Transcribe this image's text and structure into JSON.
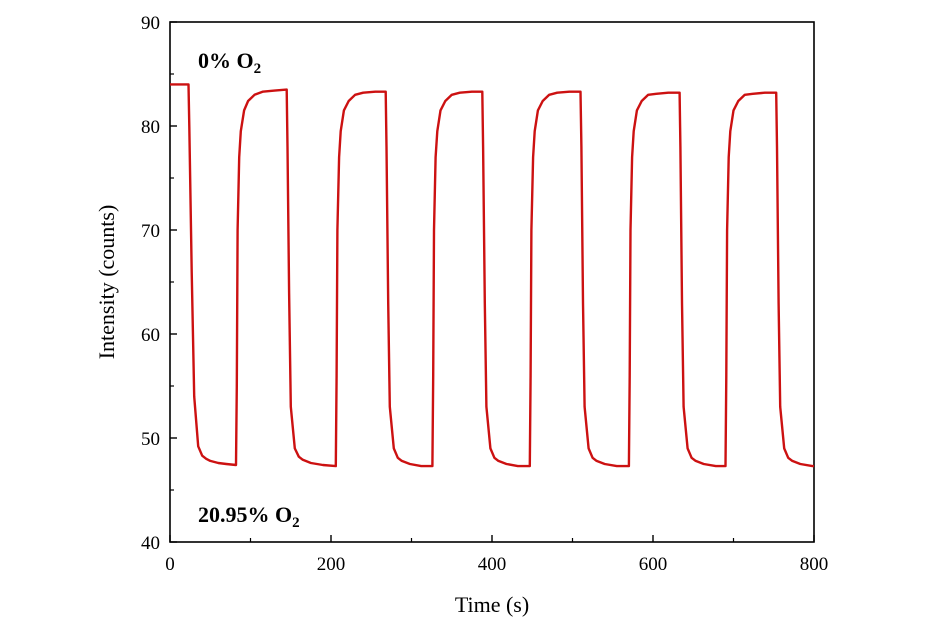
{
  "chart_data": {
    "type": "line",
    "title": "",
    "xlabel": "Time (s)",
    "ylabel": "Intensity (counts)",
    "xlim": [
      0,
      800
    ],
    "ylim": [
      40,
      90
    ],
    "x_ticks": [
      0,
      200,
      400,
      600,
      800
    ],
    "y_ticks": [
      40,
      50,
      60,
      70,
      80,
      90
    ],
    "x_tick_labels": [
      "0",
      "200",
      "400",
      "600",
      "800"
    ],
    "y_tick_labels": [
      "40",
      "50",
      "60",
      "70",
      "80",
      "90"
    ],
    "grid": false,
    "legend": "none",
    "line_color": "#cc1111",
    "annotations": [
      {
        "text": "0% O",
        "subscript": "2",
        "position": "top-left"
      },
      {
        "text": "20.95% O",
        "subscript": "2",
        "position": "bottom-left"
      }
    ],
    "series": [
      {
        "x": [
          0,
          23,
          24,
          27,
          30,
          35,
          40,
          45,
          50,
          60,
          70,
          82,
          83,
          84,
          86,
          88,
          92,
          97,
          105,
          115,
          130,
          145,
          146,
          148,
          150,
          155,
          160,
          165,
          175,
          190,
          206,
          207,
          208,
          210,
          212,
          216,
          222,
          230,
          240,
          255,
          268,
          269,
          271,
          273,
          278,
          283,
          288,
          298,
          312,
          326,
          327,
          328,
          330,
          332,
          336,
          342,
          350,
          360,
          375,
          388,
          389,
          391,
          393,
          398,
          403,
          408,
          418,
          432,
          447,
          448,
          449,
          451,
          453,
          457,
          463,
          471,
          481,
          496,
          510,
          511,
          513,
          515,
          520,
          525,
          530,
          540,
          555,
          570,
          571,
          572,
          574,
          576,
          580,
          586,
          594,
          604,
          619,
          633,
          634,
          636,
          638,
          643,
          648,
          653,
          663,
          678,
          690,
          691,
          692,
          694,
          696,
          700,
          706,
          714,
          724,
          739,
          753,
          754,
          756,
          758,
          763,
          768,
          773,
          783,
          798,
          800
        ],
        "y": [
          84.0,
          84.0,
          80.0,
          66.0,
          54.0,
          49.2,
          48.3,
          48.0,
          47.8,
          47.6,
          47.5,
          47.4,
          55.0,
          70.0,
          77.0,
          79.5,
          81.5,
          82.4,
          83.0,
          83.3,
          83.4,
          83.5,
          78.0,
          64.0,
          53.0,
          49.0,
          48.2,
          47.9,
          47.6,
          47.4,
          47.3,
          56.0,
          70.0,
          77.0,
          79.5,
          81.5,
          82.4,
          83.0,
          83.2,
          83.3,
          83.3,
          78.0,
          63.0,
          53.0,
          49.0,
          48.1,
          47.8,
          47.5,
          47.3,
          47.3,
          56.0,
          70.0,
          77.0,
          79.5,
          81.5,
          82.4,
          83.0,
          83.2,
          83.3,
          83.3,
          78.0,
          63.0,
          53.0,
          49.0,
          48.1,
          47.8,
          47.5,
          47.3,
          47.3,
          56.0,
          70.0,
          77.0,
          79.5,
          81.5,
          82.4,
          83.0,
          83.2,
          83.3,
          83.3,
          78.0,
          63.0,
          53.0,
          49.0,
          48.1,
          47.8,
          47.5,
          47.3,
          47.3,
          56.0,
          70.0,
          77.0,
          79.5,
          81.5,
          82.4,
          83.0,
          83.1,
          83.2,
          83.2,
          78.0,
          63.0,
          53.0,
          49.0,
          48.1,
          47.8,
          47.5,
          47.3,
          47.3,
          56.0,
          70.0,
          77.0,
          79.5,
          81.5,
          82.4,
          83.0,
          83.1,
          83.2,
          83.2,
          78.0,
          63.0,
          53.0,
          49.0,
          48.1,
          47.8,
          47.5,
          47.3,
          47.3
        ]
      }
    ]
  }
}
